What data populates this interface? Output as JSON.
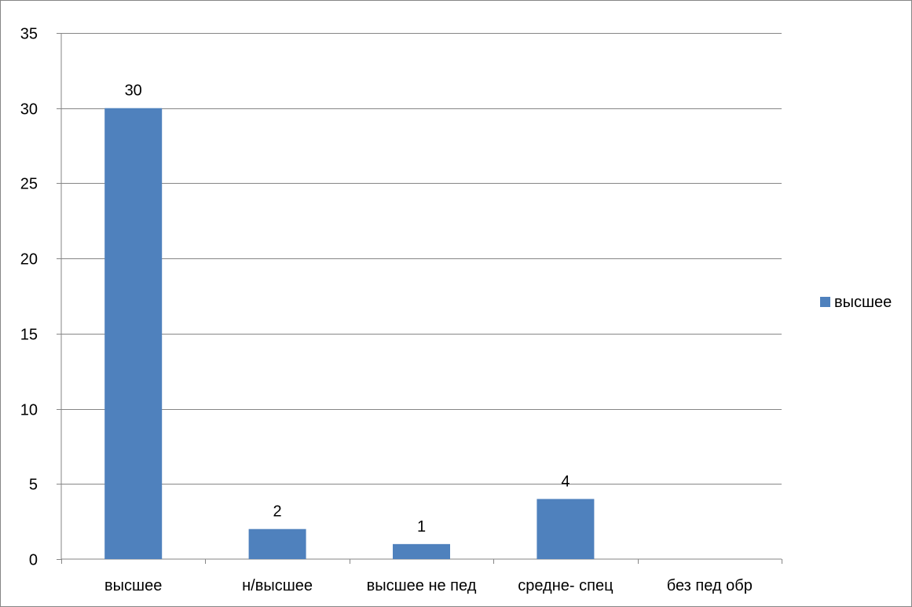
{
  "chart_data": {
    "type": "bar",
    "title": "",
    "xlabel": "",
    "ylabel": "",
    "categories": [
      "высшее",
      "н/высшее",
      "высшее не пед",
      "средне- спец",
      "без пед обр"
    ],
    "series": [
      {
        "name": "высшее",
        "values": [
          30,
          2,
          1,
          4,
          null
        ],
        "color": "#4F81BD"
      }
    ],
    "data_labels": [
      "30",
      "2",
      "1",
      "4",
      ""
    ],
    "ylim": [
      0,
      35
    ],
    "y_ticks": [
      0,
      5,
      10,
      15,
      20,
      25,
      30,
      35
    ],
    "y_tick_labels": [
      "0",
      "5",
      "10",
      "15",
      "20",
      "25",
      "30",
      "35"
    ],
    "grid": true,
    "legend": {
      "position": "right",
      "entries": [
        "высшее"
      ]
    }
  }
}
